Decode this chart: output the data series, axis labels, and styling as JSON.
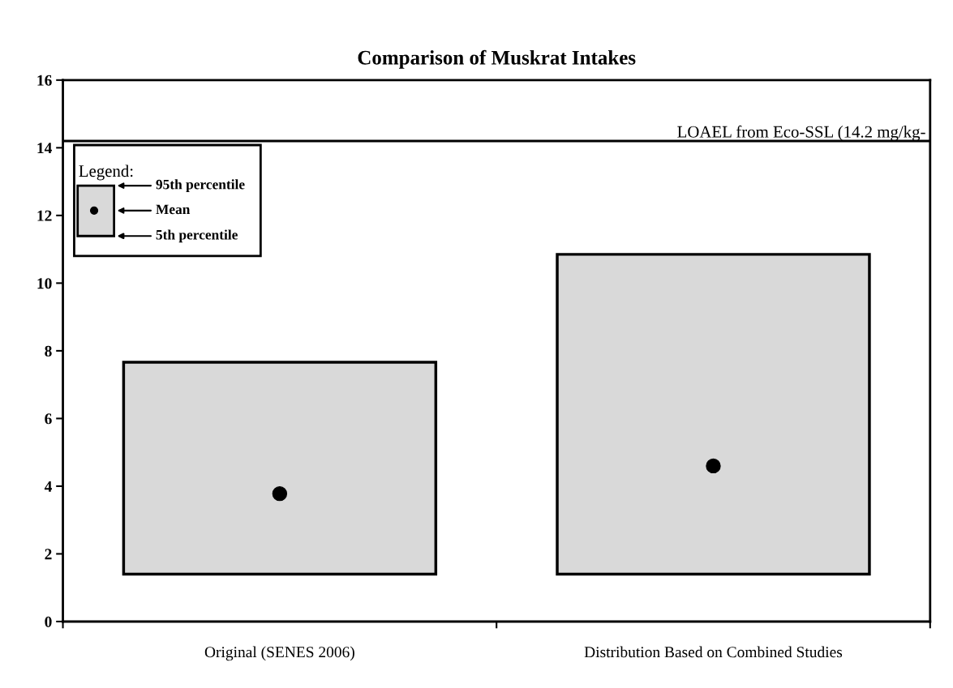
{
  "chart_data": {
    "type": "bar",
    "title": "Comparison of Muskrat Intakes",
    "categories": [
      "Original (SENES 2006)",
      "Distribution Based on Combined Studies"
    ],
    "series": [
      {
        "color": "#d9d9d9",
        "values": [
          6.26,
          9.45
        ],
        "base": [
          1.4,
          1.4
        ]
      },
      {
        "type": "scatter",
        "color": "#000000",
        "marker": "circle",
        "x": [
          "Original (SENES 2006)",
          "Distribution Based on Combined Studies"
        ],
        "values": [
          3.78,
          4.6
        ]
      }
    ],
    "ylim": [
      0,
      16
    ],
    "yticks": [
      0,
      2,
      4,
      6,
      8,
      10,
      12,
      14,
      16
    ],
    "ref_lines": [
      {
        "axis": "y",
        "value": 14.2,
        "label": "LOAEL from Eco-SSL (14.2 mg/kg-",
        "color": "#000000"
      }
    ],
    "annotations": [
      "Legend:",
      "95th percentile",
      "Mean",
      "5th percentile"
    ],
    "grid": false
  }
}
